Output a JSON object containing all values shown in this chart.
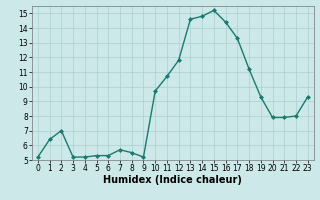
{
  "x": [
    0,
    1,
    2,
    3,
    4,
    5,
    6,
    7,
    8,
    9,
    10,
    11,
    12,
    13,
    14,
    15,
    16,
    17,
    18,
    19,
    20,
    21,
    22,
    23
  ],
  "y": [
    5.2,
    6.4,
    7.0,
    5.2,
    5.2,
    5.3,
    5.3,
    5.7,
    5.5,
    5.2,
    9.7,
    10.7,
    11.8,
    14.6,
    14.8,
    15.2,
    14.4,
    13.3,
    11.2,
    9.3,
    7.9,
    7.9,
    8.0,
    9.3
  ],
  "line_color": "#1a7a6e",
  "marker": "D",
  "marker_size": 2,
  "bg_color": "#cce8e8",
  "grid_color": "#aacfcf",
  "xlabel": "Humidex (Indice chaleur)",
  "ylim": [
    5,
    15.5
  ],
  "xlim": [
    -0.5,
    23.5
  ],
  "yticks": [
    5,
    6,
    7,
    8,
    9,
    10,
    11,
    12,
    13,
    14,
    15
  ],
  "xticks": [
    0,
    1,
    2,
    3,
    4,
    5,
    6,
    7,
    8,
    9,
    10,
    11,
    12,
    13,
    14,
    15,
    16,
    17,
    18,
    19,
    20,
    21,
    22,
    23
  ],
  "tick_fontsize": 5.5,
  "xlabel_fontsize": 7.0,
  "line_width": 1.0
}
